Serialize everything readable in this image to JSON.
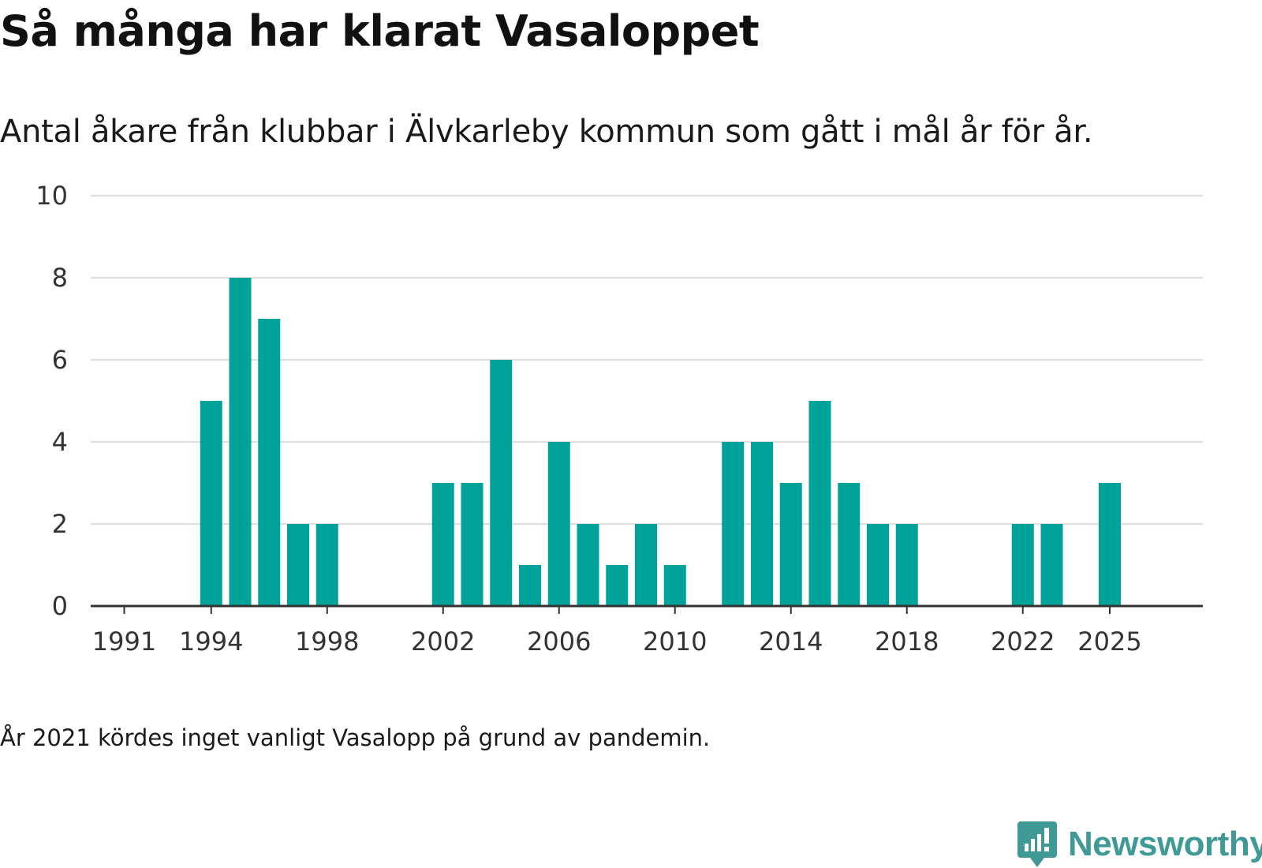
{
  "header": {
    "title": "Så många har klarat Vasaloppet",
    "subtitle": "Antal åkare från klubbar i Älvkarleby kommun som gått i mål år för år."
  },
  "footer": {
    "note": "År 2021 kördes inget vanligt Vasalopp på grund av pandemin.",
    "brand": "Newsworthy"
  },
  "colors": {
    "bar": "#00a39a",
    "grid": "#dddddd",
    "axis": "#333333",
    "brand": "#3f9a96"
  },
  "chart_data": {
    "type": "bar",
    "title": "Så många har klarat Vasaloppet",
    "subtitle": "Antal åkare från klubbar i Älvkarleby kommun som gått i mål år för år.",
    "xlabel": "",
    "ylabel": "",
    "ylim": [
      0,
      10
    ],
    "yticks": [
      0,
      2,
      4,
      6,
      8,
      10
    ],
    "xticks": [
      1991,
      1994,
      1998,
      2002,
      2006,
      2010,
      2014,
      2018,
      2022,
      2025
    ],
    "grid": true,
    "legend": "none",
    "categories": [
      1991,
      1992,
      1993,
      1994,
      1995,
      1996,
      1997,
      1998,
      1999,
      2000,
      2001,
      2002,
      2003,
      2004,
      2005,
      2006,
      2007,
      2008,
      2009,
      2010,
      2011,
      2012,
      2013,
      2014,
      2015,
      2016,
      2017,
      2018,
      2019,
      2020,
      2021,
      2022,
      2023,
      2024,
      2025
    ],
    "values": [
      0,
      0,
      0,
      5,
      8,
      7,
      2,
      2,
      0,
      0,
      0,
      3,
      3,
      6,
      1,
      4,
      2,
      1,
      2,
      1,
      0,
      4,
      4,
      3,
      5,
      3,
      2,
      2,
      0,
      0,
      0,
      2,
      2,
      0,
      3
    ]
  }
}
